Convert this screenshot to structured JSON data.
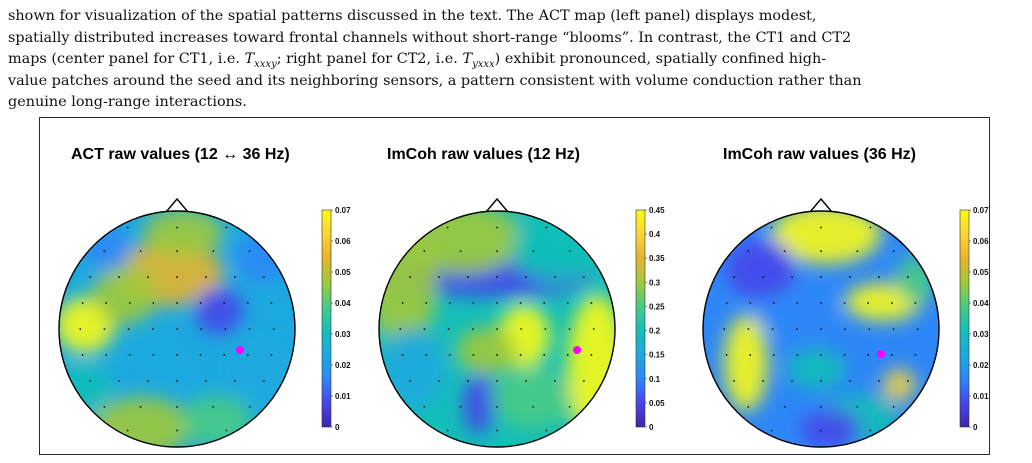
{
  "paragraph": {
    "line1": "shown for visualization of the spatial patterns discussed in the text. The ACT map (left panel) displays modest,",
    "line2": "spatially distributed increases toward frontal channels without short-range “blooms”. In contrast, the CT1 and CT2",
    "line3a": "maps (center panel for CT1, i.e. ",
    "t1_base": "T",
    "t1_sub": "xxxy",
    "line3b": "; right panel for CT2, i.e. ",
    "t2_base": "T",
    "t2_sub": "yxxx",
    "line3c": ") exhibit pronounced, spatially confined high-",
    "line4": "value patches around the seed and its neighboring sensors, a pattern consistent with volume conduction rather than",
    "line5": "genuine long-range interactions."
  },
  "figure": {
    "panels": [
      {
        "title": "ACT raw values (12 ↔ 36 Hz)",
        "colorbar_ticks": [
          "0.07",
          "0.06",
          "0.05",
          "0.04",
          "0.03",
          "0.02",
          "0.01",
          "0"
        ],
        "seed_color": "#ff00ff"
      },
      {
        "title": "ImCoh raw values (12 Hz)",
        "colorbar_ticks": [
          "0.45",
          "0.4",
          "0.35",
          "0.3",
          "0.25",
          "0.2",
          "0.15",
          "0.1",
          "0.05",
          "0"
        ],
        "seed_color": "#ff00ff"
      },
      {
        "title": "ImCoh raw values (36 Hz)",
        "colorbar_ticks": [
          "0.07",
          "0.06",
          "0.05",
          "0.04",
          "0.03",
          "0.02",
          "0.01",
          "0"
        ],
        "seed_color": "#ff00ff"
      }
    ],
    "colormap": [
      "#3e26a8",
      "#4746eb",
      "#2e87f7",
      "#1ca9df",
      "#13beb8",
      "#48cb86",
      "#a0c93a",
      "#e5b42f",
      "#fcd535",
      "#f9fb15"
    ]
  }
}
